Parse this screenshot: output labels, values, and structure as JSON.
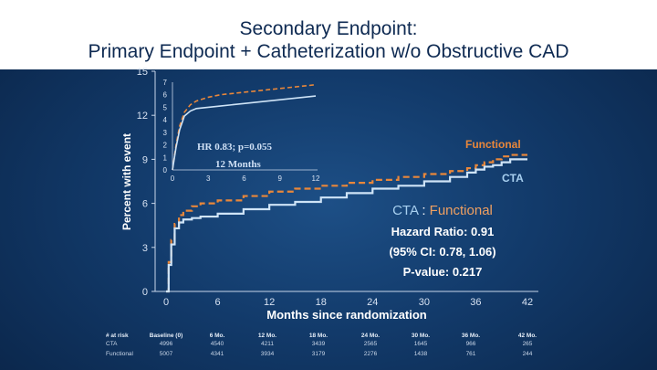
{
  "title": {
    "line1": "Secondary Endpoint:",
    "line2": "Primary Endpoint + Catheterization w/o Obstructive CAD"
  },
  "colors": {
    "cta": "#cfe4f7",
    "functional": "#e9873a",
    "annotation_functional": "#f0a061",
    "annotation_cta": "#a8d0f0"
  },
  "annotations": {
    "cta_word": "CTA",
    "separator": " : ",
    "functional_word": "Functional",
    "hazard_ratio": "Hazard Ratio: 0.91",
    "ci": "(95% CI: 0.78, 1.06)",
    "pvalue": "P-value: 0.217"
  },
  "inset": {
    "hr_text": "HR 0.83; p=0.055",
    "xlabel": "12 Months",
    "x_ticks": [
      "0",
      "3",
      "6",
      "9",
      "12"
    ],
    "y_ticks": [
      "0",
      "1",
      "2",
      "3",
      "4",
      "5",
      "6",
      "7"
    ]
  },
  "risk_table": {
    "header": [
      "# at risk",
      "Baseline (0)",
      "6 Mo.",
      "12 Mo.",
      "18 Mo.",
      "24 Mo.",
      "30 Mo.",
      "36 Mo.",
      "42 Mo."
    ],
    "rows": [
      {
        "label": "CTA",
        "values": [
          "4996",
          "4540",
          "4211",
          "3439",
          "2565",
          "1645",
          "966",
          "265"
        ]
      },
      {
        "label": "Functional",
        "values": [
          "5007",
          "4341",
          "3934",
          "3179",
          "2276",
          "1438",
          "761",
          "244"
        ]
      }
    ]
  },
  "chart_data": {
    "type": "line",
    "title": "",
    "xlabel": "Months since randomization",
    "ylabel": "Percent with event",
    "xlim": [
      0,
      42
    ],
    "ylim": [
      0,
      15
    ],
    "x_ticks": [
      "0",
      "6",
      "12",
      "18",
      "24",
      "30",
      "36",
      "42"
    ],
    "y_ticks": [
      "0",
      "3",
      "6",
      "9",
      "12",
      "15"
    ],
    "series": [
      {
        "name": "Functional",
        "style": "dashed",
        "x": [
          0,
          0.3,
          0.6,
          1,
          1.5,
          2,
          3,
          4,
          6,
          9,
          12,
          15,
          18,
          21,
          24,
          27,
          30,
          33,
          35,
          36,
          37,
          38,
          39,
          40,
          42
        ],
        "y": [
          0,
          2.0,
          3.5,
          4.6,
          5.2,
          5.5,
          5.8,
          6.0,
          6.2,
          6.5,
          6.8,
          7.0,
          7.2,
          7.4,
          7.6,
          7.8,
          8.0,
          8.2,
          8.4,
          8.6,
          8.8,
          9.0,
          9.2,
          9.3,
          9.3
        ]
      },
      {
        "name": "CTA",
        "style": "solid",
        "x": [
          0,
          0.3,
          0.6,
          1,
          1.5,
          2,
          3,
          4,
          6,
          9,
          12,
          15,
          18,
          21,
          24,
          27,
          30,
          33,
          35,
          36,
          37,
          38,
          39,
          40,
          42
        ],
        "y": [
          0,
          1.8,
          3.2,
          4.3,
          4.7,
          4.9,
          5.0,
          5.1,
          5.3,
          5.6,
          5.9,
          6.1,
          6.4,
          6.7,
          7.0,
          7.2,
          7.5,
          7.8,
          8.1,
          8.3,
          8.5,
          8.6,
          8.8,
          9.0,
          9.0
        ]
      }
    ],
    "inset_chart": {
      "type": "line",
      "xlim": [
        0,
        12
      ],
      "ylim": [
        0,
        7
      ],
      "series": [
        {
          "name": "Functional",
          "style": "dashed",
          "x": [
            0,
            0.3,
            0.6,
            1,
            1.5,
            2,
            3,
            4,
            6,
            8,
            10,
            12
          ],
          "y": [
            0,
            2.0,
            3.5,
            4.6,
            5.2,
            5.5,
            5.8,
            6.0,
            6.2,
            6.4,
            6.6,
            6.8
          ]
        },
        {
          "name": "CTA",
          "style": "solid",
          "x": [
            0,
            0.3,
            0.6,
            1,
            1.5,
            2,
            3,
            4,
            6,
            8,
            10,
            12
          ],
          "y": [
            0,
            1.8,
            3.2,
            4.3,
            4.7,
            4.9,
            5.0,
            5.1,
            5.3,
            5.5,
            5.7,
            5.9
          ]
        }
      ]
    }
  }
}
